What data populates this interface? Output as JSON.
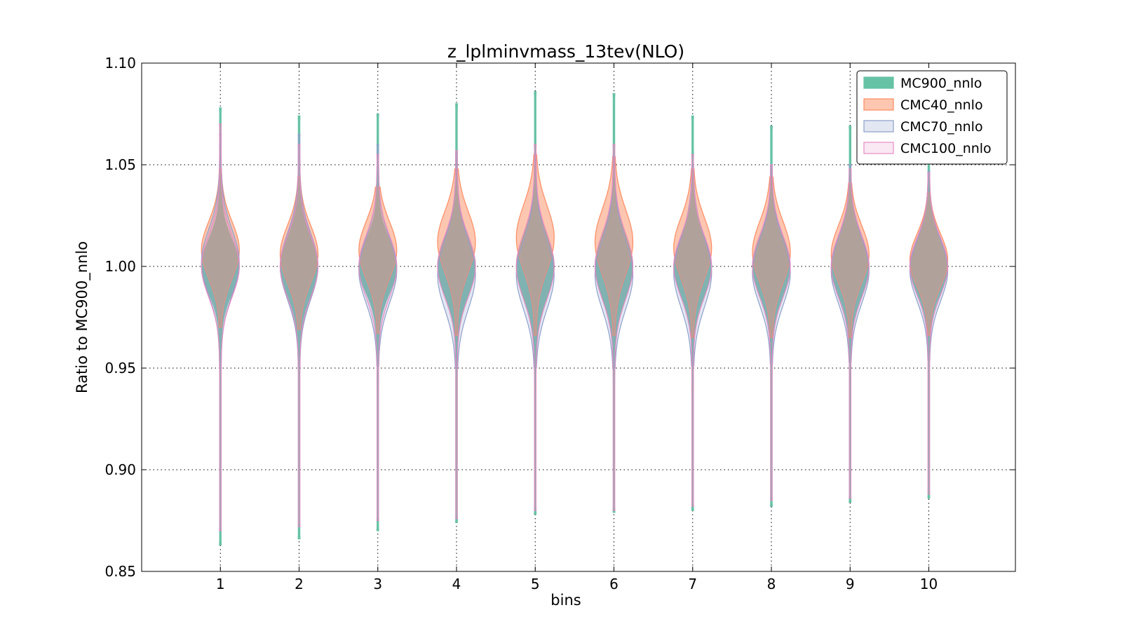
{
  "chart_data": {
    "type": "violin",
    "title": "z_lplminvmass_13tev(NLO)",
    "xlabel": "bins",
    "ylabel": "Ratio to MC900_nnlo",
    "categories": [
      "1",
      "2",
      "3",
      "4",
      "5",
      "6",
      "7",
      "8",
      "9",
      "10"
    ],
    "xlim": [
      0,
      11.1
    ],
    "ylim": [
      0.85,
      1.1
    ],
    "yticks": [
      "0.85",
      "0.90",
      "0.95",
      "1.00",
      "1.05",
      "1.10"
    ],
    "grid": true,
    "legend_position": "top-right",
    "series": [
      {
        "name": "MC900_nnlo",
        "fill": "#66c2a5",
        "stroke": "#66c2a5",
        "opacity": 1.0,
        "min": [
          0.863,
          0.866,
          0.87,
          0.874,
          0.878,
          0.879,
          0.88,
          0.882,
          0.884,
          0.886
        ],
        "max": [
          1.078,
          1.074,
          1.075,
          1.08,
          1.086,
          1.085,
          1.074,
          1.069,
          1.069,
          1.052
        ],
        "center": [
          1.0,
          1.0,
          1.0,
          1.0,
          1.0,
          1.0,
          1.0,
          1.0,
          1.0,
          1.0
        ],
        "spread": [
          0.013,
          0.014,
          0.013,
          0.014,
          0.015,
          0.015,
          0.014,
          0.014,
          0.014,
          0.013
        ]
      },
      {
        "name": "CMC40_nnlo",
        "fill": "#fc8d62",
        "stroke": "#fc8d62",
        "opacity": 0.5,
        "min": [
          0.97,
          0.969,
          0.967,
          0.966,
          0.966,
          0.966,
          0.965,
          0.965,
          0.965,
          0.966
        ],
        "max": [
          1.048,
          1.044,
          1.039,
          1.048,
          1.055,
          1.054,
          1.048,
          1.044,
          1.041,
          1.036
        ],
        "center": [
          1.008,
          1.006,
          1.008,
          1.012,
          1.014,
          1.012,
          1.009,
          1.007,
          1.006,
          1.003
        ],
        "spread": [
          0.014,
          0.014,
          0.014,
          0.015,
          0.016,
          0.016,
          0.015,
          0.015,
          0.014,
          0.013
        ]
      },
      {
        "name": "CMC70_nnlo",
        "fill": "#8da0cb",
        "stroke": "#8da0cb",
        "opacity": 0.25,
        "min": [
          0.95,
          0.95,
          0.951,
          0.95,
          0.95,
          0.95,
          0.951,
          0.952,
          0.953,
          0.954
        ],
        "max": [
          1.065,
          1.065,
          1.06,
          1.056,
          1.056,
          1.054,
          1.05,
          1.05,
          1.05,
          1.047
        ],
        "center": [
          1.002,
          1.0,
          0.998,
          0.996,
          0.996,
          0.996,
          0.997,
          0.997,
          0.998,
          0.998
        ],
        "spread": [
          0.016,
          0.016,
          0.016,
          0.017,
          0.017,
          0.017,
          0.017,
          0.016,
          0.016,
          0.015
        ]
      },
      {
        "name": "CMC100_nnlo",
        "fill": "#e78ac3",
        "stroke": "#e78ac3",
        "opacity": 0.15,
        "min": [
          0.87,
          0.872,
          0.875,
          0.876,
          0.88,
          0.88,
          0.882,
          0.885,
          0.886,
          0.888
        ],
        "max": [
          1.07,
          1.06,
          1.055,
          1.057,
          1.06,
          1.06,
          1.055,
          1.05,
          1.048,
          1.046
        ],
        "center": [
          1.0,
          1.0,
          1.0,
          1.0,
          1.0,
          1.0,
          1.0,
          1.0,
          1.0,
          1.0
        ],
        "spread": [
          0.015,
          0.015,
          0.015,
          0.015,
          0.016,
          0.016,
          0.015,
          0.015,
          0.015,
          0.014
        ]
      }
    ]
  }
}
